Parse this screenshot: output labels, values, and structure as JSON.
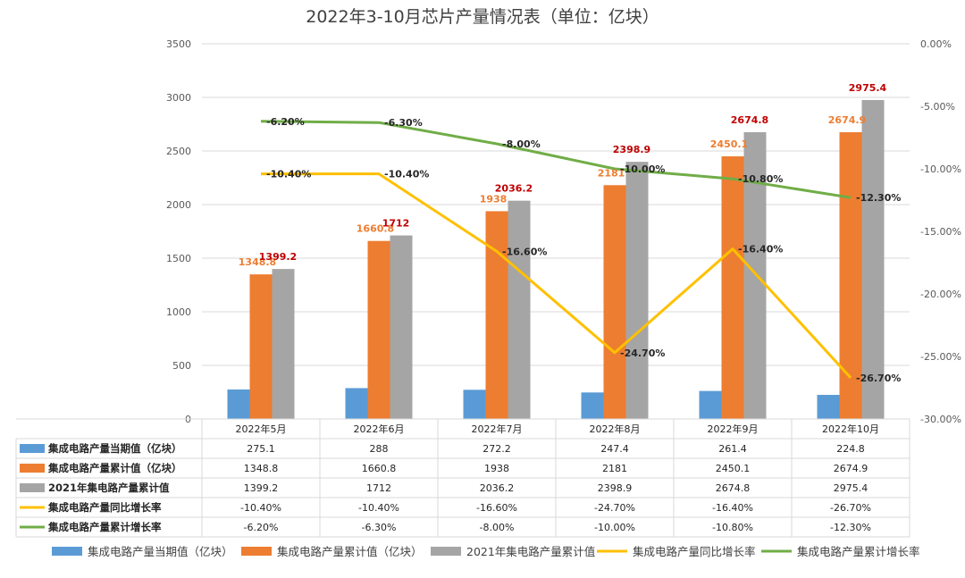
{
  "chart_data": {
    "type": "bar",
    "title": "2022年3-10月芯片产量情况表（单位：亿块）",
    "categories": [
      "2022年5月",
      "2022年6月",
      "2022年7月",
      "2022年8月",
      "2022年9月",
      "2022年10月"
    ],
    "ylim": [
      0,
      3500
    ],
    "yticks": [
      "0",
      "500",
      "1000",
      "1500",
      "2000",
      "2500",
      "3000",
      "3500"
    ],
    "y2lim": [
      -30,
      0
    ],
    "y2ticks": [
      "-30.00%",
      "-25.00%",
      "-20.00%",
      "-15.00%",
      "-10.00%",
      "-5.00%",
      "0.00%"
    ],
    "series": [
      {
        "name": "集成电路产量当期值（亿块）",
        "type": "bar",
        "axis": "left",
        "color": "#5B9BD5",
        "values": [
          275.1,
          288,
          272.2,
          247.4,
          261.4,
          224.8
        ],
        "table_values": [
          "275.1",
          "288",
          "272.2",
          "247.4",
          "261.4",
          "224.8"
        ],
        "data_labels": []
      },
      {
        "name": "集成电路产量累计值（亿块）",
        "type": "bar",
        "axis": "left",
        "color": "#ED7D31",
        "values": [
          1348.8,
          1660.8,
          1938,
          2181,
          2450.1,
          2674.9
        ],
        "table_values": [
          "1348.8",
          "1660.8",
          "1938",
          "2181",
          "2450.1",
          "2674.9"
        ],
        "data_labels": [
          "1348.8",
          "1660.8",
          "1938",
          "2181",
          "2450.1",
          "2674.9"
        ],
        "label_color": "#ED7D31"
      },
      {
        "name": "2021年集电路产量累计值",
        "type": "bar",
        "axis": "left",
        "color": "#A5A5A5",
        "values": [
          1399.2,
          1712,
          2036.2,
          2398.9,
          2674.8,
          2975.4
        ],
        "table_values": [
          "1399.2",
          "1712",
          "2036.2",
          "2398.9",
          "2674.8",
          "2975.4"
        ],
        "data_labels": [
          "1399.2",
          "1712",
          "2036.2",
          "2398.9",
          "2674.8",
          "2975.4"
        ],
        "label_color": "#C00000"
      },
      {
        "name": "集成电路产量同比增长率",
        "type": "line",
        "axis": "right",
        "color": "#FFC000",
        "values": [
          -10.4,
          -10.4,
          -16.6,
          -24.7,
          -16.4,
          -26.7
        ],
        "table_values": [
          "-10.40%",
          "-10.40%",
          "-16.60%",
          "-24.70%",
          "-16.40%",
          "-26.70%"
        ],
        "data_labels": [
          "-10.40%",
          "-10.40%",
          "-16.60%",
          "-24.70%",
          "-16.40%",
          "-26.70%"
        ]
      },
      {
        "name": "集成电路产量累计增长率",
        "type": "line",
        "axis": "right",
        "color": "#70AD47",
        "values": [
          -6.2,
          -6.3,
          -8.0,
          -10.0,
          -10.8,
          -12.3
        ],
        "table_values": [
          "-6.20%",
          "-6.30%",
          "-8.00%",
          "-10.00%",
          "-10.80%",
          "-12.30%"
        ],
        "data_labels": [
          "-6.20%",
          "-6.30%",
          "-8.00%",
          "-10.00%",
          "-10.80%",
          "-12.30%"
        ]
      }
    ],
    "table_row_headers": [
      "集成电路产量当期值（亿块）",
      "集成电路产量累计值（亿块）",
      "2021年集电路产量累计值",
      "集成电路产量同比增长率",
      "集成电路产量累计增长率"
    ],
    "legend": [
      "集成电路产量当期值（亿块）",
      "集成电路产量累计值（亿块）",
      "2021年集电路产量累计值",
      "集成电路产量同比增长率",
      "集成电路产量累计增长率"
    ],
    "legend_position": "bottom",
    "grid": true
  }
}
